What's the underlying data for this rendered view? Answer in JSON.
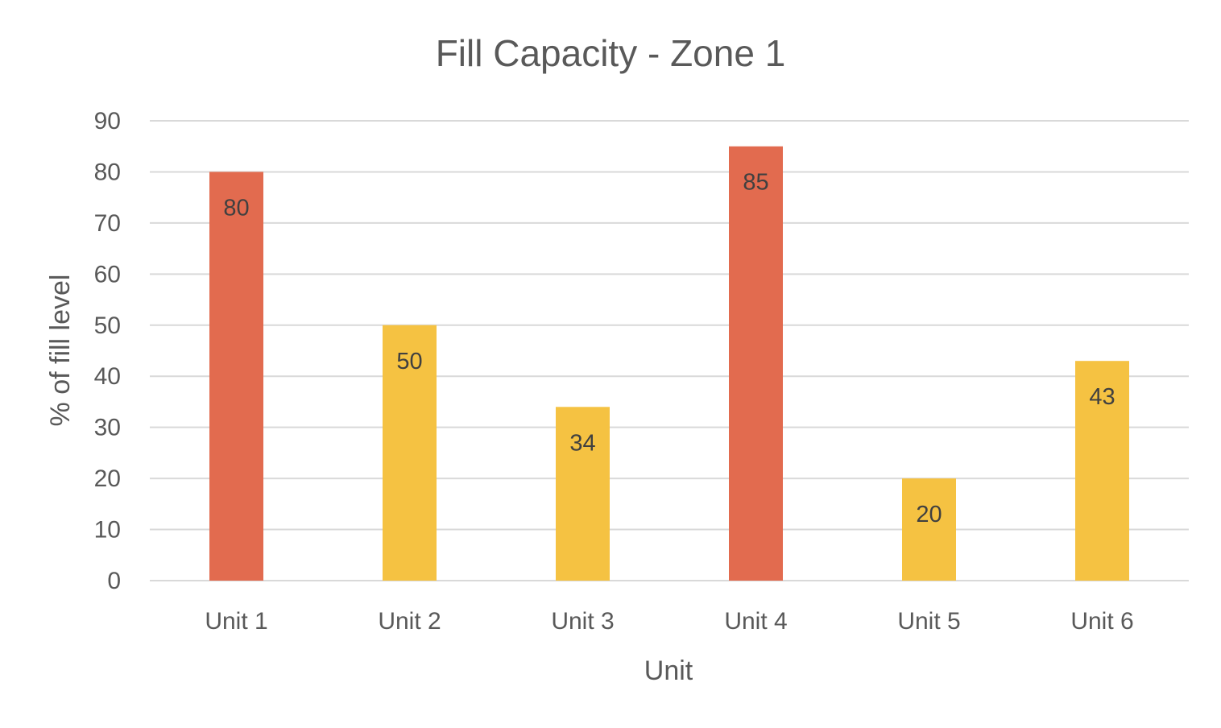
{
  "chart_data": {
    "type": "bar",
    "title": "Fill Capacity - Zone 1",
    "xlabel": "Unit",
    "ylabel": "% of  fill level",
    "categories": [
      "Unit 1",
      "Unit 2",
      "Unit 3",
      "Unit 4",
      "Unit 5",
      "Unit 6"
    ],
    "values": [
      80,
      50,
      34,
      85,
      20,
      43
    ],
    "data_labels": [
      "80",
      "50",
      "34",
      "85",
      "20",
      "43"
    ],
    "bar_colors": [
      "#e26b4f",
      "#f5c242",
      "#f5c242",
      "#e26b4f",
      "#f5c242",
      "#f5c242"
    ],
    "ylim": [
      0,
      90
    ],
    "yticks": [
      0,
      10,
      20,
      30,
      40,
      50,
      60,
      70,
      80,
      90
    ],
    "ytick_labels": [
      "0",
      "10",
      "20",
      "30",
      "40",
      "50",
      "60",
      "70",
      "80",
      "90"
    ],
    "grid": true,
    "legend": "none"
  }
}
